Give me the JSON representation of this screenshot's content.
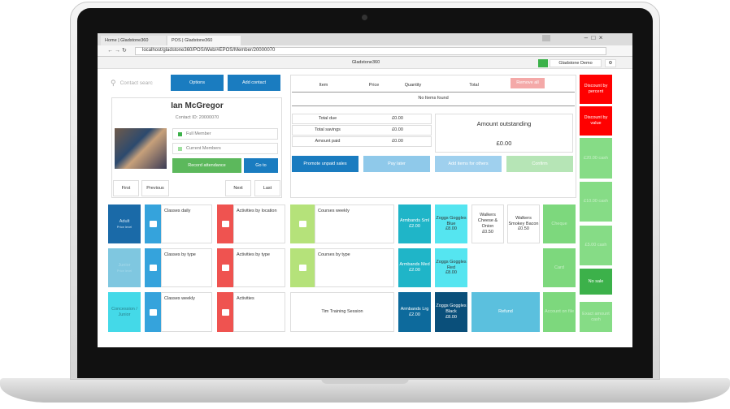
{
  "browser": {
    "tabs": [
      "Home | Gladstone360",
      "POS | Gladstone360"
    ],
    "url": "localhost/gladstone360/POS/Web/#EPOS/Member/20000070"
  },
  "header": {
    "title": "Gladstone360",
    "user": "Gladstone Demo"
  },
  "search": {
    "placeholder": "Contact searc",
    "options": "Options",
    "add": "Add contact"
  },
  "member": {
    "name": "Ian McGregor",
    "contact_id": "Contact ID: 20000070",
    "memberships": [
      "Full Member",
      "Current Members"
    ],
    "record": "Record attendance",
    "goto": "Go to",
    "nav": [
      "First",
      "Previous",
      "Next",
      "Last"
    ]
  },
  "basket": {
    "columns": [
      "Item",
      "Price",
      "Quantity",
      "Total"
    ],
    "remove_all": "Remove all",
    "empty": "No Items found",
    "totals": [
      {
        "label": "Total due",
        "value": "£0.00"
      },
      {
        "label": "Total savings",
        "value": "£0.00"
      },
      {
        "label": "Amount paid",
        "value": "£0.00"
      }
    ],
    "outstanding": {
      "label": "Amount outstanding",
      "value": "£0.00"
    },
    "actions": [
      "Promote unpaid sales",
      "Pay later",
      "Add items for others",
      "Confirm"
    ]
  },
  "side": [
    "Discount by percent",
    "Discount by value",
    "£20.00 cash",
    "£10.00 cash",
    "£5.00 cash",
    "No sale",
    "Exact amount cash"
  ],
  "tiles": [
    {
      "label": "Adult",
      "sub": "Price level"
    },
    {
      "label": "Classes daily"
    },
    {
      "label": "Activities by location"
    },
    {
      "label": "Courses weekly"
    },
    {
      "label": "Armbands Sml",
      "price": "£2.00"
    },
    {
      "label": "Zoggs Goggles Blue",
      "price": "£8.00"
    },
    {
      "label": "Walkers Cheese & Onion",
      "price": "£0.50"
    },
    {
      "label": "Walkers Smokey Bacon",
      "price": "£0.50"
    },
    {
      "label": "Cheque"
    },
    {
      "label": "Junior",
      "sub": "Price level"
    },
    {
      "label": "Classes by type"
    },
    {
      "label": "Activities by type"
    },
    {
      "label": "Courses by type"
    },
    {
      "label": "Armbands Med",
      "price": "£2.00"
    },
    {
      "label": "Zoggs Goggles Red",
      "price": "£8.00"
    },
    {
      "label": "Card"
    },
    {
      "label": "Concession / Junior"
    },
    {
      "label": "Classes weekly"
    },
    {
      "label": "Activities"
    },
    {
      "label": "Tim Training Session"
    },
    {
      "label": "Armbands Lrg",
      "price": "£2.00"
    },
    {
      "label": "Zoggs Goggles Black",
      "price": "£8.00"
    },
    {
      "label": "Refund"
    },
    {
      "label": "Account on file"
    }
  ]
}
